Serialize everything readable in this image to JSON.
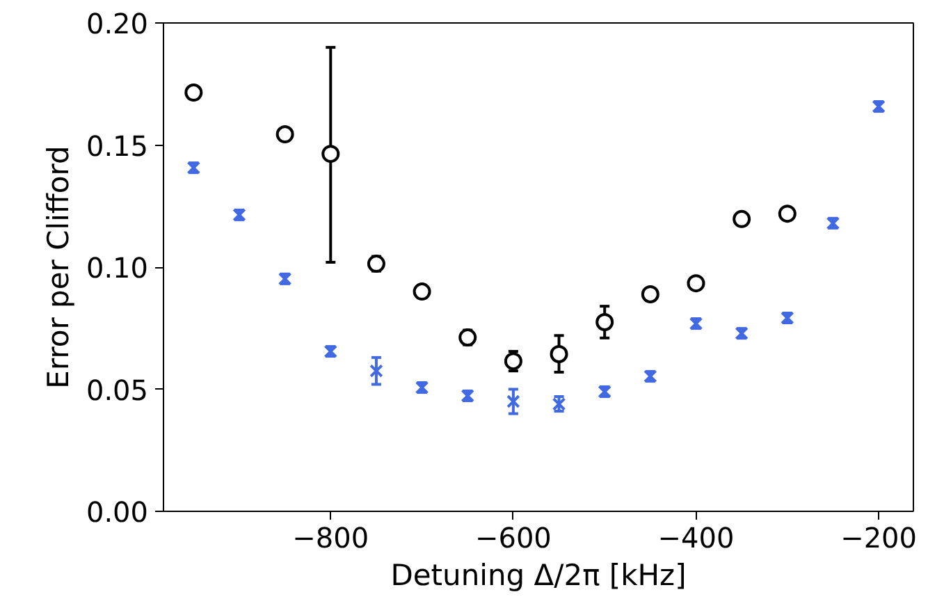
{
  "chart_data": {
    "type": "scatter",
    "xlabel": "Detuning Δ/2π [kHz]",
    "ylabel": "Error per Clifford",
    "xlim": [
      -983,
      -162
    ],
    "xticks": [
      -800,
      -600,
      -400,
      -200
    ],
    "ylim": [
      0,
      0.2
    ],
    "yticks": [
      {
        "value": 0,
        "label": "0.00"
      },
      {
        "value": 0.05,
        "label": "0.05"
      },
      {
        "value": 0.1,
        "label": "0.10"
      },
      {
        "value": 0.15,
        "label": "0.15"
      },
      {
        "value": 0.2,
        "label": "0.20"
      }
    ],
    "grid": false,
    "series": [
      {
        "color": "#000000",
        "marker": "circle",
        "x": [
          -950,
          -850,
          -800,
          -750,
          -700,
          -650,
          -600,
          -550,
          -500,
          -450,
          -400,
          -350,
          -300
        ],
        "values": [
          0.1715,
          0.1544,
          0.1464,
          0.1014,
          0.09,
          0.0712,
          0.0615,
          0.0644,
          0.0775,
          0.0889,
          0.0934,
          0.1197,
          0.1219
        ],
        "errors": [
          0.002,
          0.002,
          [
            0.102,
            0.19
          ],
          0.003,
          0.002,
          0.003,
          0.004,
          [
            0.057,
            0.072
          ],
          [
            0.071,
            0.084
          ],
          0.002,
          0.002,
          0.002,
          0.002
        ]
      },
      {
        "color": "#4169e1",
        "marker": "cross",
        "x": [
          -950,
          -900,
          -850,
          -800,
          -750,
          -700,
          -650,
          -600,
          -550,
          -500,
          -450,
          -400,
          -350,
          -300,
          -250,
          -200
        ],
        "values": [
          0.1407,
          0.1214,
          0.0952,
          0.0655,
          0.0575,
          0.0507,
          0.0473,
          0.045,
          0.0439,
          0.049,
          0.0553,
          0.0769,
          0.0729,
          0.0792,
          0.118,
          0.1658
        ],
        "errors": [
          0.002,
          0.002,
          0.002,
          0.002,
          [
            0.052,
            0.063
          ],
          0.002,
          0.002,
          [
            0.04,
            0.05
          ],
          [
            0.041,
            0.047
          ],
          0.002,
          0.002,
          0.002,
          0.002,
          0.002,
          0.002,
          0.002
        ]
      }
    ]
  }
}
